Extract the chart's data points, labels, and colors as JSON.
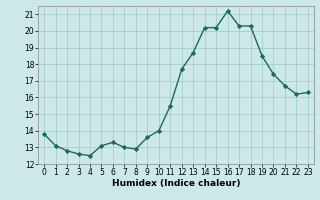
{
  "x": [
    0,
    1,
    2,
    3,
    4,
    5,
    6,
    7,
    8,
    9,
    10,
    11,
    12,
    13,
    14,
    15,
    16,
    17,
    18,
    19,
    20,
    21,
    22,
    23
  ],
  "y": [
    13.8,
    13.1,
    12.8,
    12.6,
    12.5,
    13.1,
    13.3,
    13.0,
    12.9,
    13.6,
    14.0,
    15.5,
    17.7,
    18.7,
    20.2,
    20.2,
    21.2,
    20.3,
    20.3,
    18.5,
    17.4,
    16.7,
    16.2,
    16.3
  ],
  "xlabel": "Humidex (Indice chaleur)",
  "ylim": [
    12,
    21.5
  ],
  "xlim": [
    -0.5,
    23.5
  ],
  "yticks": [
    12,
    13,
    14,
    15,
    16,
    17,
    18,
    19,
    20,
    21
  ],
  "xtick_labels": [
    "0",
    "1",
    "2",
    "3",
    "4",
    "5",
    "6",
    "7",
    "8",
    "9",
    "10",
    "11",
    "12",
    "13",
    "14",
    "15",
    "16",
    "17",
    "18",
    "19",
    "20",
    "21",
    "22",
    "23"
  ],
  "line_color": "#1a6b5a",
  "marker": "D",
  "marker_size": 2.2,
  "bg_color": "#cce8e8",
  "grid_color": "#a0c8c8",
  "line_width": 1.0,
  "tick_fontsize": 5.5,
  "xlabel_fontsize": 6.5
}
